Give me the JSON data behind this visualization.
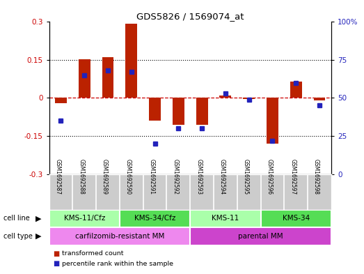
{
  "title": "GDS5826 / 1569074_at",
  "samples": [
    "GSM1692587",
    "GSM1692588",
    "GSM1692589",
    "GSM1692590",
    "GSM1692591",
    "GSM1692592",
    "GSM1692593",
    "GSM1692594",
    "GSM1692595",
    "GSM1692596",
    "GSM1692597",
    "GSM1692598"
  ],
  "transformed_count": [
    -0.02,
    0.153,
    0.162,
    0.293,
    -0.09,
    -0.105,
    -0.105,
    0.01,
    -0.005,
    -0.18,
    0.065,
    -0.01
  ],
  "percentile_rank": [
    35,
    65,
    68,
    67,
    20,
    30,
    30,
    53,
    49,
    22,
    60,
    45
  ],
  "ylim_left": [
    -0.3,
    0.3
  ],
  "ylim_right": [
    0,
    100
  ],
  "yticks_left": [
    -0.3,
    -0.15,
    0,
    0.15,
    0.3
  ],
  "yticks_right": [
    0,
    25,
    50,
    75,
    100
  ],
  "bar_color": "#bb2200",
  "dot_color": "#2222bb",
  "zero_line_color": "#cc0000",
  "cell_line_groups": [
    {
      "label": "KMS-11/Cfz",
      "start": 0,
      "end": 3,
      "color": "#aaffaa"
    },
    {
      "label": "KMS-34/Cfz",
      "start": 3,
      "end": 6,
      "color": "#55dd55"
    },
    {
      "label": "KMS-11",
      "start": 6,
      "end": 9,
      "color": "#aaffaa"
    },
    {
      "label": "KMS-34",
      "start": 9,
      "end": 12,
      "color": "#55dd55"
    }
  ],
  "cell_type_groups": [
    {
      "label": "carfilzomib-resistant MM",
      "start": 0,
      "end": 6,
      "color": "#ee88ee"
    },
    {
      "label": "parental MM",
      "start": 6,
      "end": 12,
      "color": "#cc44cc"
    }
  ],
  "bg_color": "#ffffff",
  "sample_bg_color": "#cccccc",
  "hline_color": "#000000"
}
